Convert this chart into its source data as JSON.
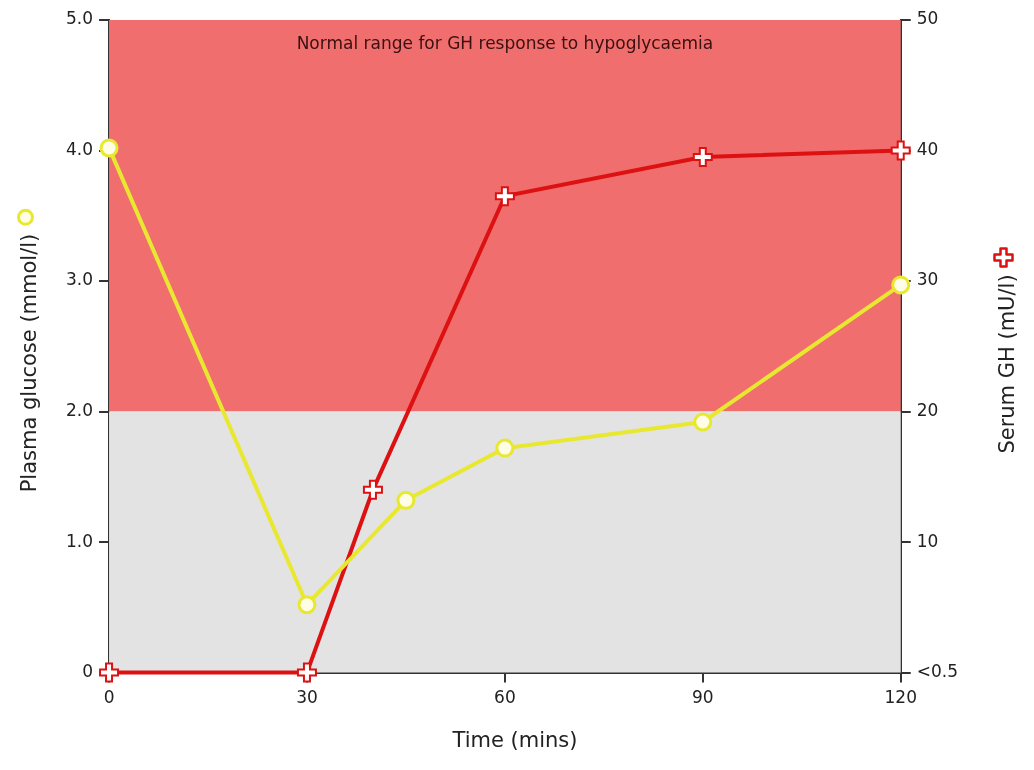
{
  "chart_data": {
    "type": "line",
    "xlabel": "Time (mins)",
    "ylabel": "Plasma glucose (mmol/l)",
    "y2label": "Serum GH (mU/l)",
    "xlim": [
      0,
      120
    ],
    "xticks": [
      0,
      30,
      60,
      90,
      120
    ],
    "ylim": [
      0,
      5
    ],
    "yticks": [
      0,
      {
        "value": 1,
        "label": "1.0"
      },
      {
        "value": 2,
        "label": "2.0"
      },
      {
        "value": 3,
        "label": "3.0"
      },
      {
        "value": 4,
        "label": "4.0"
      },
      {
        "value": 5,
        "label": "5.0"
      }
    ],
    "y2lim": [
      0,
      50
    ],
    "y2ticks": [
      {
        "value": 0,
        "label": "<0.5"
      },
      10,
      20,
      30,
      40,
      50
    ],
    "grid": false,
    "legend": false,
    "bands": [
      {
        "axis": "y2",
        "from": 20,
        "to": 50,
        "label": "Normal range for GH response to hypoglycaemia",
        "color": "#f06e6e"
      },
      {
        "axis": "y2",
        "from": 0,
        "to": 20,
        "color": "#e3e3e3"
      }
    ],
    "series": [
      {
        "color": "#e8e830",
        "marker": "circle",
        "x": [
          0,
          30,
          45,
          60,
          90,
          120
        ],
        "values": [
          4.02,
          0.52,
          1.32,
          1.72,
          1.92,
          2.97
        ]
      },
      {
        "color": "#dd1111",
        "marker": "cross",
        "axis": "y2",
        "x": [
          0,
          30,
          40,
          60,
          90,
          120
        ],
        "values": [
          0,
          0,
          14,
          36.5,
          39.5,
          40
        ]
      }
    ]
  }
}
